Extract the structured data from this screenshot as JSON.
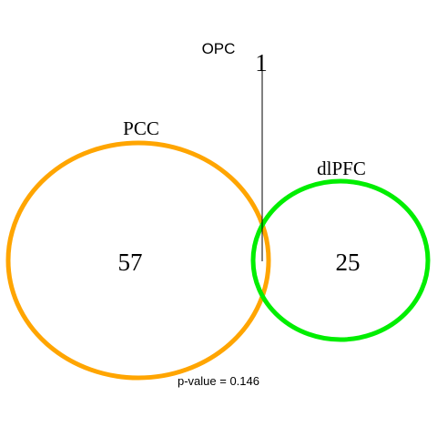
{
  "sets": [
    {
      "name": "PCC",
      "count": "57",
      "color": "#FFA500"
    },
    {
      "name": "dlPFC",
      "count": "25",
      "color": "#00EE00"
    },
    {
      "name": "OPC",
      "count": "1",
      "color": "#000000"
    }
  ],
  "footer": {
    "pvalue_text": "p-value = 0.146"
  }
}
